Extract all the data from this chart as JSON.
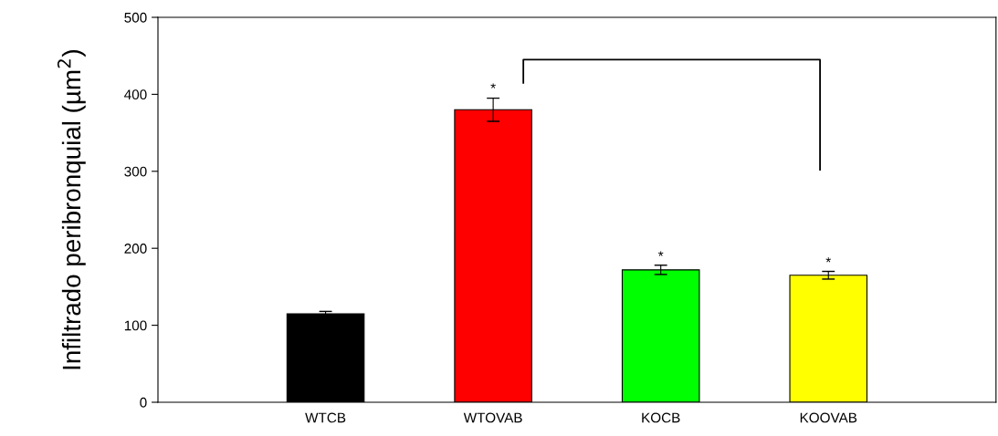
{
  "chart_data": {
    "type": "bar",
    "ylabel": "Infiltrado peribronquial (µm$^{2}$)",
    "categories": [
      "WTCB",
      "WTOVAB",
      "KOCB",
      "KOOVAB"
    ],
    "values": [
      115,
      380,
      172,
      165
    ],
    "colors": [
      "#000000",
      "#ff0000",
      "#00ff00",
      "#ffff00"
    ],
    "errors": [
      3,
      15,
      6,
      5
    ],
    "ylim": [
      0,
      500
    ],
    "yticks": [
      0,
      100,
      200,
      300,
      400,
      500
    ],
    "grid": false,
    "legend": false,
    "annotations": [
      {
        "text": "*",
        "x": "WTOVAB",
        "y": 398
      },
      {
        "text": "*",
        "x": "KOCB",
        "y": 180
      },
      {
        "text": "*",
        "x": "KOOVAB",
        "y": 172
      }
    ]
  }
}
